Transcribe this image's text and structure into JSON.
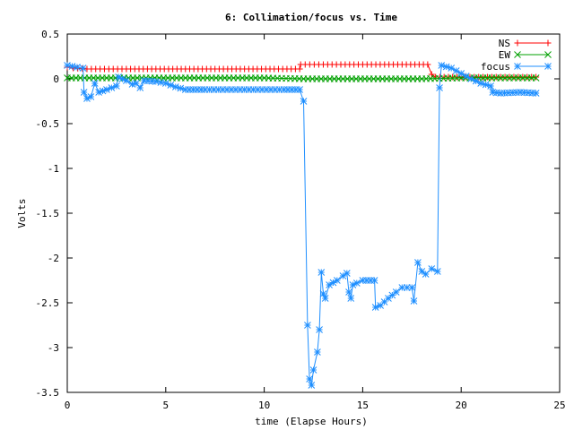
{
  "chart_data": {
    "type": "line",
    "title": "6: Collimation/focus vs. Time",
    "xlabel": "time (Elapse Hours)",
    "ylabel": "Volts",
    "xlim": [
      0,
      25
    ],
    "ylim": [
      -3.5,
      0.5
    ],
    "xticks": [
      "0",
      "5",
      "10",
      "15",
      "20",
      "25"
    ],
    "yticks": [
      "0.5",
      "0",
      "-0.5",
      "-1",
      "-1.5",
      "-2",
      "-2.5",
      "-3",
      "-3.5"
    ],
    "grid": false,
    "legend_position": "top-right",
    "series": [
      {
        "name": "NS",
        "color": "#ff0000",
        "marker": "plus",
        "points": [
          [
            0,
            0.13
          ],
          [
            0.3,
            0.12
          ],
          [
            1,
            0.11
          ],
          [
            3,
            0.11
          ],
          [
            6,
            0.11
          ],
          [
            9,
            0.11
          ],
          [
            11.8,
            0.11
          ],
          [
            11.85,
            0.16
          ],
          [
            13,
            0.16
          ],
          [
            15,
            0.16
          ],
          [
            17,
            0.16
          ],
          [
            18.3,
            0.16
          ],
          [
            18.5,
            0.05
          ],
          [
            18.7,
            0.02
          ],
          [
            20,
            0.02
          ],
          [
            22,
            0.02
          ],
          [
            23.8,
            0.02
          ]
        ]
      },
      {
        "name": "EW",
        "color": "#00a000",
        "marker": "x",
        "points": [
          [
            0,
            0.01
          ],
          [
            2,
            0.01
          ],
          [
            4,
            0.01
          ],
          [
            6,
            0.01
          ],
          [
            8,
            0.01
          ],
          [
            10,
            0.01
          ],
          [
            12,
            0.0
          ],
          [
            14,
            0.0
          ],
          [
            16,
            0.0
          ],
          [
            18,
            0.0
          ],
          [
            20,
            0.01
          ],
          [
            22,
            0.01
          ],
          [
            23.8,
            0.01
          ]
        ]
      },
      {
        "name": "focus",
        "color": "#1f8fff",
        "marker": "star",
        "points": [
          [
            0,
            0.15
          ],
          [
            0.5,
            0.13
          ],
          [
            0.8,
            0.12
          ],
          [
            0.85,
            -0.15
          ],
          [
            1,
            -0.22
          ],
          [
            1.2,
            -0.2
          ],
          [
            1.4,
            -0.05
          ],
          [
            1.6,
            -0.15
          ],
          [
            2,
            -0.12
          ],
          [
            2.5,
            -0.08
          ],
          [
            2.6,
            0.02
          ],
          [
            3,
            -0.02
          ],
          [
            3.3,
            -0.06
          ],
          [
            3.5,
            -0.05
          ],
          [
            3.7,
            -0.1
          ],
          [
            3.9,
            -0.02
          ],
          [
            4.5,
            -0.03
          ],
          [
            5,
            -0.05
          ],
          [
            5.5,
            -0.09
          ],
          [
            6,
            -0.12
          ],
          [
            7,
            -0.12
          ],
          [
            9,
            -0.12
          ],
          [
            11,
            -0.12
          ],
          [
            11.8,
            -0.12
          ],
          [
            12.0,
            -0.25
          ],
          [
            12.2,
            -2.75
          ],
          [
            12.3,
            -3.35
          ],
          [
            12.4,
            -3.42
          ],
          [
            12.5,
            -3.25
          ],
          [
            12.7,
            -3.05
          ],
          [
            12.8,
            -2.8
          ],
          [
            12.9,
            -2.16
          ],
          [
            13.0,
            -2.4
          ],
          [
            13.1,
            -2.45
          ],
          [
            13.3,
            -2.3
          ],
          [
            13.7,
            -2.25
          ],
          [
            14.0,
            -2.2
          ],
          [
            14.2,
            -2.17
          ],
          [
            14.3,
            -2.38
          ],
          [
            14.4,
            -2.45
          ],
          [
            14.5,
            -2.3
          ],
          [
            14.7,
            -2.28
          ],
          [
            15.0,
            -2.25
          ],
          [
            15.6,
            -2.25
          ],
          [
            15.65,
            -2.55
          ],
          [
            15.9,
            -2.53
          ],
          [
            16.3,
            -2.45
          ],
          [
            16.7,
            -2.38
          ],
          [
            17.0,
            -2.33
          ],
          [
            17.5,
            -2.33
          ],
          [
            17.6,
            -2.48
          ],
          [
            17.8,
            -2.05
          ],
          [
            18.0,
            -2.15
          ],
          [
            18.2,
            -2.18
          ],
          [
            18.5,
            -2.12
          ],
          [
            18.8,
            -2.15
          ],
          [
            18.9,
            -0.1
          ],
          [
            19.0,
            0.15
          ],
          [
            19.5,
            0.12
          ],
          [
            20.0,
            0.06
          ],
          [
            20.5,
            0.0
          ],
          [
            21.0,
            -0.05
          ],
          [
            21.5,
            -0.08
          ],
          [
            21.6,
            -0.15
          ],
          [
            22.0,
            -0.16
          ],
          [
            23.0,
            -0.15
          ],
          [
            23.8,
            -0.16
          ]
        ]
      }
    ]
  }
}
